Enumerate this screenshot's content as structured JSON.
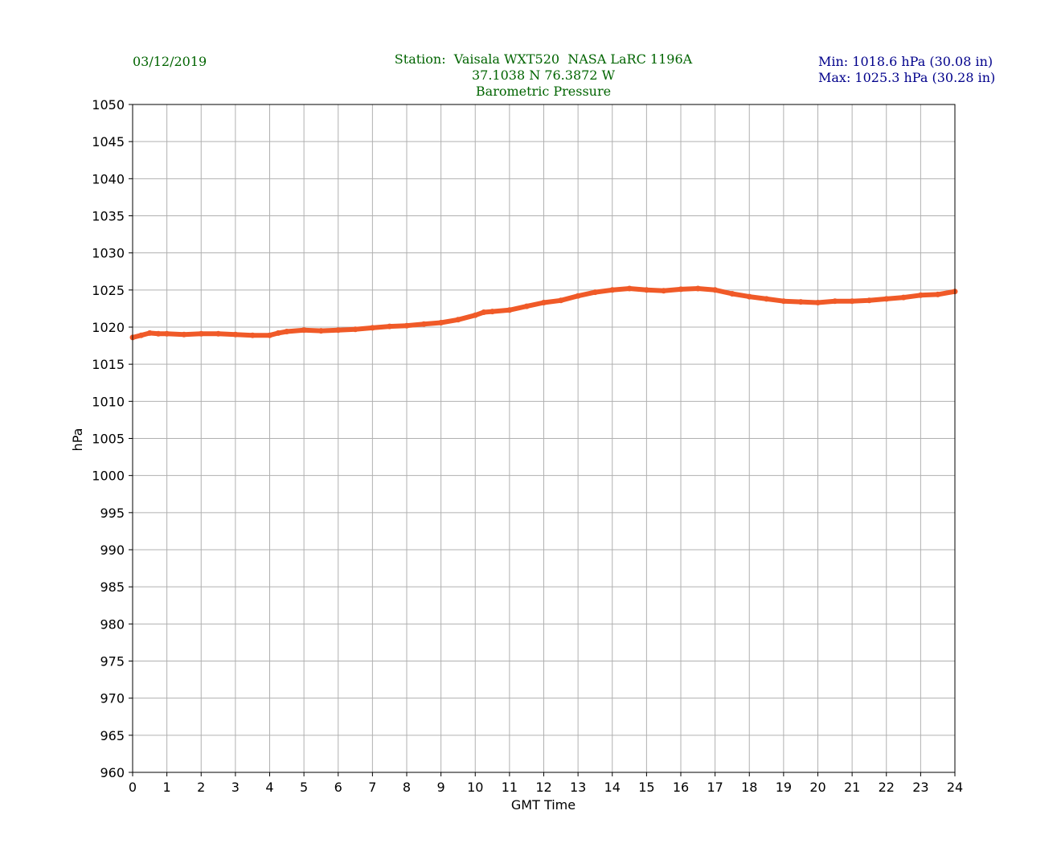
{
  "header": {
    "date": "03/12/2019",
    "station_line": "Station:  Vaisala WXT520  NASA LaRC 1196A",
    "coords_line": "37.1038 N 76.3872 W",
    "variable_line": "Barometric Pressure",
    "min_line": "Min: 1018.6 hPa (30.08 in)",
    "max_line": "Max: 1025.3 hPa (30.28 in)"
  },
  "colors": {
    "series": "#f05a28",
    "date_title": "#006400",
    "minmax": "#00008b",
    "grid": "#b0b0b0"
  },
  "chart_data": {
    "type": "line",
    "title": "Barometric Pressure",
    "xlabel": "GMT Time",
    "ylabel": "hPa",
    "xlim": [
      0,
      24
    ],
    "ylim": [
      960,
      1050
    ],
    "x_ticks": [
      0,
      1,
      2,
      3,
      4,
      5,
      6,
      7,
      8,
      9,
      10,
      11,
      12,
      13,
      14,
      15,
      16,
      17,
      18,
      19,
      20,
      21,
      22,
      23,
      24
    ],
    "y_ticks": [
      960,
      965,
      970,
      975,
      980,
      985,
      990,
      995,
      1000,
      1005,
      1010,
      1015,
      1020,
      1025,
      1030,
      1035,
      1040,
      1045,
      1050
    ],
    "grid": true,
    "series": [
      {
        "x": [
          0,
          0.25,
          0.5,
          0.75,
          1,
          1.5,
          2,
          2.5,
          3,
          3.5,
          4,
          4.25,
          4.5,
          5,
          5.5,
          6,
          6.5,
          7,
          7.5,
          8,
          8.5,
          9,
          9.5,
          10,
          10.25,
          10.5,
          11,
          11.5,
          12,
          12.5,
          13,
          13.5,
          14,
          14.5,
          15,
          15.5,
          16,
          16.5,
          17,
          17.5,
          18,
          18.5,
          19,
          19.5,
          20,
          20.5,
          21,
          21.5,
          22,
          22.5,
          23,
          23.5,
          24
        ],
        "y": [
          1018.6,
          1018.9,
          1019.2,
          1019.1,
          1019.1,
          1019.0,
          1019.1,
          1019.1,
          1019.0,
          1018.9,
          1018.9,
          1019.2,
          1019.4,
          1019.6,
          1019.5,
          1019.6,
          1019.7,
          1019.9,
          1020.1,
          1020.2,
          1020.4,
          1020.6,
          1021.0,
          1021.6,
          1022.0,
          1022.1,
          1022.3,
          1022.8,
          1023.3,
          1023.6,
          1024.2,
          1024.7,
          1025.0,
          1025.2,
          1025.0,
          1024.9,
          1025.1,
          1025.2,
          1025.0,
          1024.5,
          1024.1,
          1023.8,
          1023.5,
          1023.4,
          1023.3,
          1023.5,
          1023.5,
          1023.6,
          1023.8,
          1024.0,
          1024.3,
          1024.4,
          1024.8
        ]
      }
    ]
  }
}
